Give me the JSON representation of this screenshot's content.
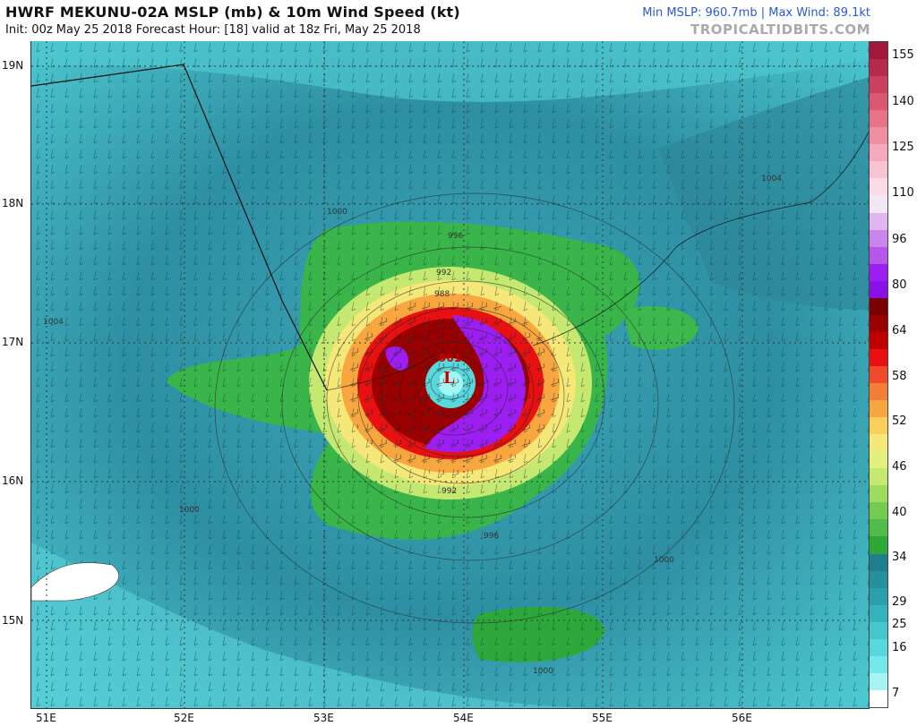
{
  "header": {
    "title": "HWRF MEKUNU-02A MSLP (mb) & 10m Wind Speed (kt)",
    "subtitle": "Init: 00z May 25 2018   Forecast Hour: [18]   valid at 18z Fri, May 25 2018",
    "stats": "Min MSLP: 960.7mb | Max Wind: 89.1kt",
    "watermark": "TROPICALTIDBITS.COM"
  },
  "map": {
    "lat_labels": [
      "19N",
      "18N",
      "17N",
      "16N",
      "15N"
    ],
    "lon_labels": [
      "51E",
      "52E",
      "53E",
      "54E",
      "55E",
      "56E"
    ],
    "low_marker": "L",
    "low_pressure": "961",
    "isobar_labels": [
      "1004",
      "1000",
      "996",
      "992",
      "988",
      "1000",
      "1000",
      "1004",
      "996",
      "1000",
      "992"
    ]
  },
  "colorbar": {
    "ticks": [
      "155",
      "140",
      "125",
      "110",
      "96",
      "80",
      "64",
      "58",
      "52",
      "46",
      "40",
      "34",
      "29",
      "25",
      "16",
      "7"
    ],
    "colors": [
      "#a3173c",
      "#b82a4c",
      "#cc3f5d",
      "#dc5871",
      "#e77389",
      "#f08fa2",
      "#f5aabb",
      "#f8c4d2",
      "#fadce7",
      "#f3e6f7",
      "#e0b6f2",
      "#cb86ee",
      "#b656ea",
      "#9c1ef0",
      "#8a10e8",
      "#7b0000",
      "#9a0000",
      "#c00000",
      "#e81010",
      "#f04a2a",
      "#f47d3a",
      "#f8a640",
      "#fbd05a",
      "#f5e878",
      "#e3f07e",
      "#c4e870",
      "#9edc60",
      "#73cc50",
      "#4fbd48",
      "#2ea83a",
      "#1f7f8f",
      "#26909f",
      "#2aa0ad",
      "#34b3bd",
      "#44c6cd",
      "#58d8dd",
      "#74e8ea",
      "#a5f4f4",
      "#ffffff"
    ]
  }
}
